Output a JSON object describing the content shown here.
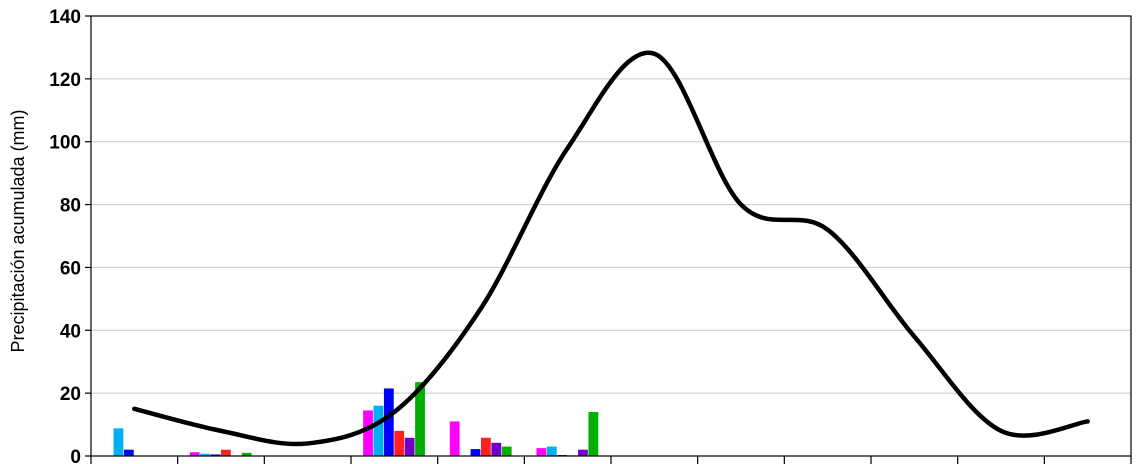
{
  "chart_data": {
    "type": "bar",
    "title": "",
    "xlabel": "",
    "ylabel": "Precipitación acumulada (mm)",
    "ylim": [
      0,
      140
    ],
    "yticks": [
      0,
      20,
      40,
      60,
      80,
      100,
      120,
      140
    ],
    "grid": true,
    "categories": [
      "",
      "",
      "",
      "",
      "",
      "",
      "",
      "",
      "",
      "",
      "",
      ""
    ],
    "bar_colors": [
      "#ff00ff",
      "#00b0f0",
      "#0000ff",
      "#ff2020",
      "#6f00c8",
      "#00b000"
    ],
    "series": [
      {
        "values": [
          0,
          1.2,
          0,
          14.5,
          11.0,
          2.5,
          0,
          0,
          0,
          0,
          0,
          0
        ]
      },
      {
        "values": [
          8.8,
          0.7,
          0,
          16.0,
          0,
          3.0,
          0,
          0,
          0,
          0,
          0,
          0
        ]
      },
      {
        "values": [
          2.0,
          0.5,
          0,
          21.5,
          2.2,
          0.3,
          0,
          0,
          0,
          0,
          0,
          0
        ]
      },
      {
        "values": [
          0,
          2.0,
          0,
          8.0,
          5.8,
          0.2,
          0,
          0,
          0,
          0,
          0,
          0
        ]
      },
      {
        "values": [
          0,
          0,
          0,
          5.8,
          4.2,
          2.0,
          0,
          0,
          0,
          0,
          0,
          0
        ]
      },
      {
        "values": [
          0,
          1.0,
          0,
          23.5,
          3.0,
          14.0,
          0,
          0,
          0,
          0,
          0,
          0
        ]
      }
    ],
    "line": {
      "color": "#000000",
      "values": [
        15.0,
        8.0,
        4.0,
        14.0,
        47.0,
        98.0,
        128.0,
        80.0,
        72.0,
        38.0,
        8.0,
        11.0
      ]
    }
  }
}
